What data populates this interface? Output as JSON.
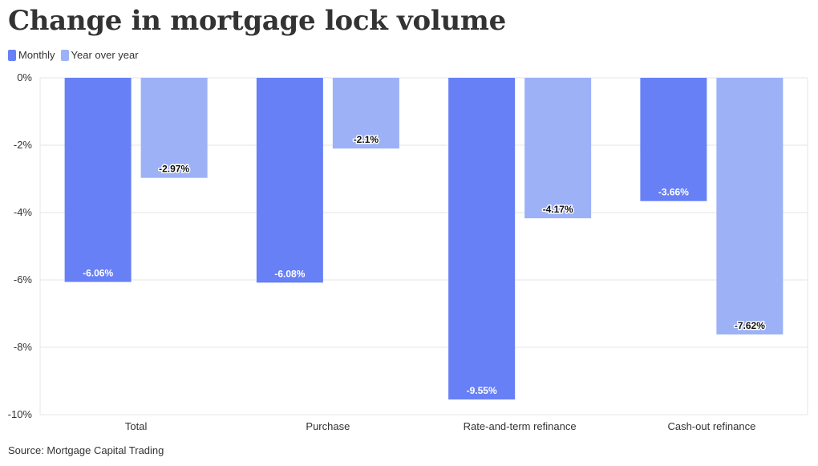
{
  "title": "Change in mortgage lock volume",
  "source": "Source: Mortgage Capital Trading",
  "colors": {
    "monthly": "#6880f5",
    "yoy": "#9db1f7",
    "grid": "#e6e6e6",
    "text": "#333333"
  },
  "chart_data": {
    "type": "bar",
    "title": "Change in mortgage lock volume",
    "xlabel": "",
    "ylabel": "",
    "categories": [
      "Total",
      "Purchase",
      "Rate-and-term refinance",
      "Cash-out refinance"
    ],
    "series": [
      {
        "name": "Monthly",
        "values": [
          -6.06,
          -6.08,
          -9.55,
          -3.66
        ],
        "labels": [
          "-6.06%",
          "-6.08%",
          "-9.55%",
          "-3.66%"
        ]
      },
      {
        "name": "Year over year",
        "values": [
          -2.97,
          -2.1,
          -4.17,
          -7.62
        ],
        "labels": [
          "-2.97%",
          "-2.1%",
          "-4.17%",
          "-7.62%"
        ]
      }
    ],
    "ylim": [
      -10,
      0
    ],
    "yticks": [
      0,
      -2,
      -4,
      -6,
      -8,
      -10
    ],
    "ytick_labels": [
      "0%",
      "-2%",
      "-4%",
      "-6%",
      "-8%",
      "-10%"
    ],
    "grid": true,
    "legend": "top-left"
  }
}
